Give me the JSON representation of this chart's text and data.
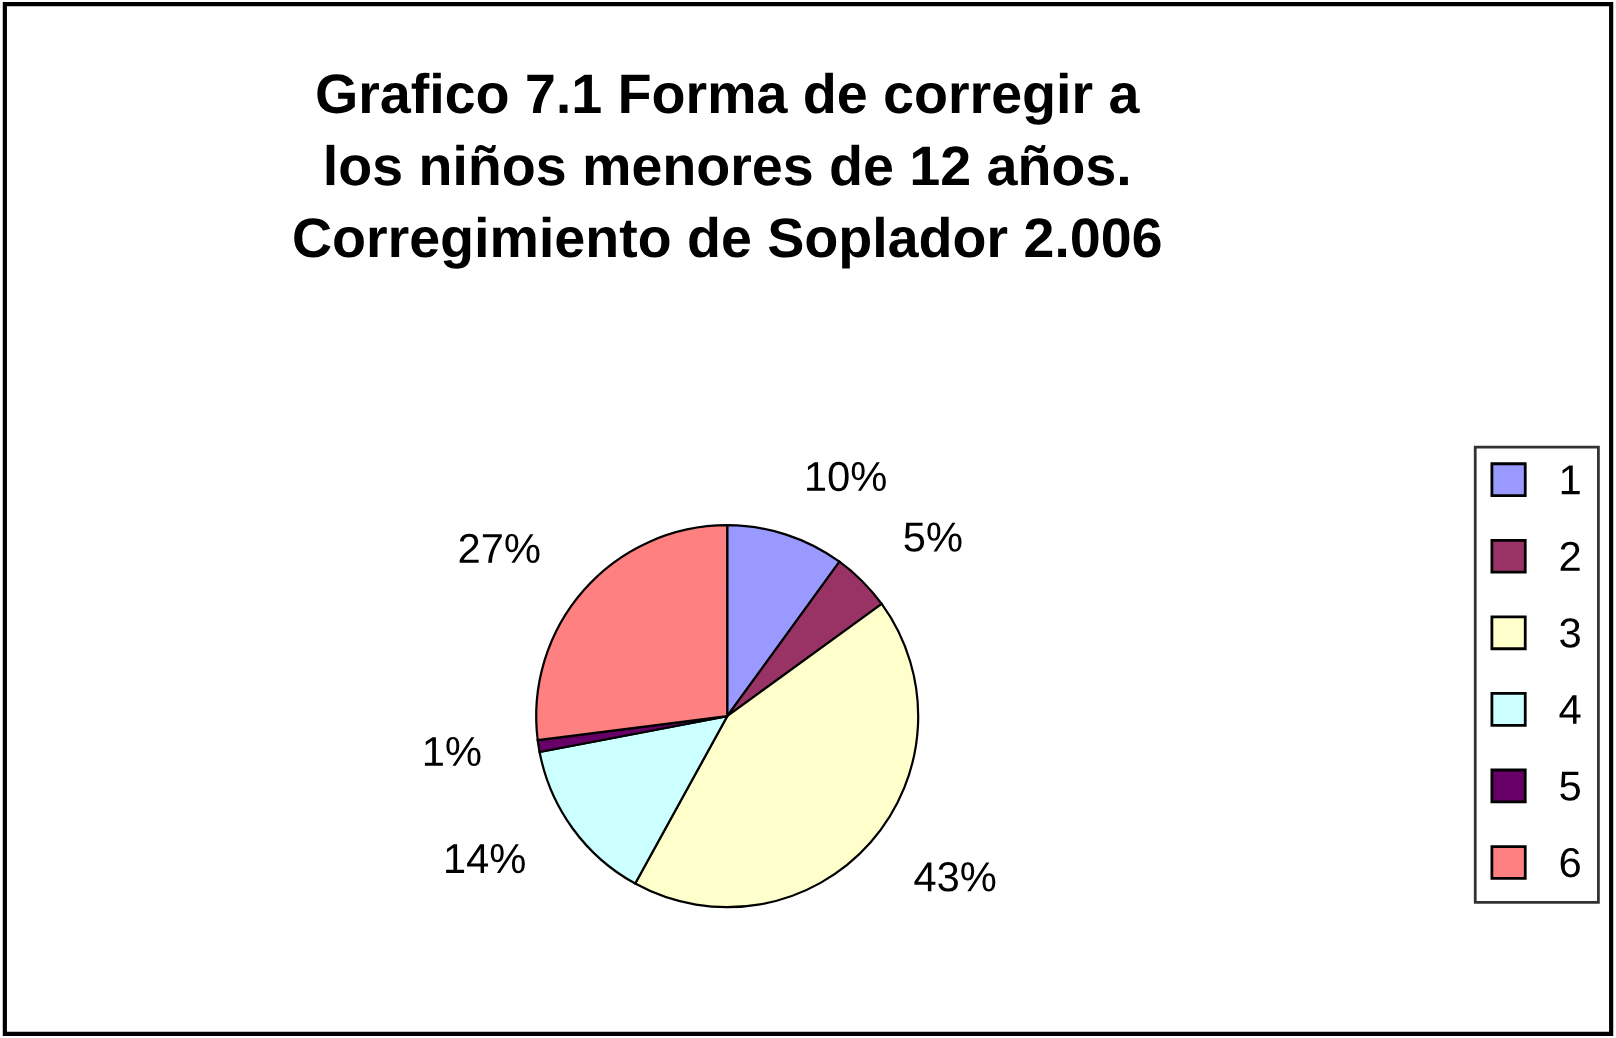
{
  "chart_data": {
    "type": "pie",
    "title": "Grafico 7.1 Forma de corregir a\nlos niños menores de 12 años.\nCorregimiento de Soplador 2.006",
    "categories": [
      "1",
      "2",
      "3",
      "4",
      "5",
      "6"
    ],
    "values": [
      10,
      5,
      43,
      14,
      1,
      27
    ],
    "colors": [
      "#9999ff",
      "#993366",
      "#ffffcc",
      "#ccffff",
      "#660066",
      "#ff8080"
    ],
    "value_labels": [
      "10%",
      "5%",
      "43%",
      "14%",
      "1%",
      "27%"
    ],
    "legend": "right"
  }
}
